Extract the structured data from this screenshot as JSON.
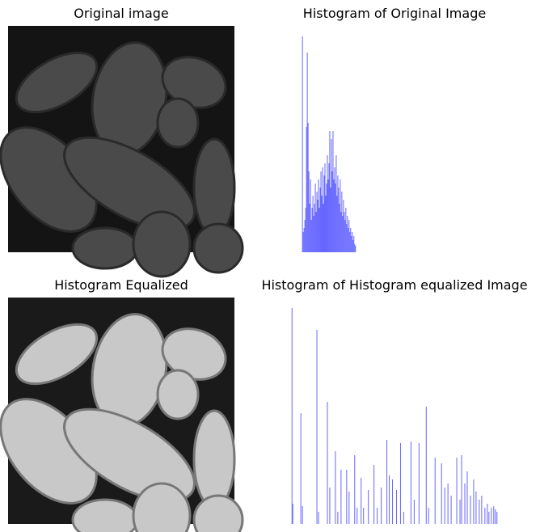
{
  "chart_data": [
    {
      "type": "image",
      "title": "Original image",
      "tone": "dark"
    },
    {
      "type": "histogram",
      "title": "Histogram of Original Image",
      "color": "#6666ff",
      "bins": [
        13,
        14,
        15,
        16,
        17,
        18,
        19,
        20,
        21,
        22,
        23,
        24,
        25,
        26,
        27,
        28,
        29,
        30,
        31,
        32,
        33,
        34,
        35,
        36,
        37,
        38,
        39,
        40,
        41,
        42,
        43,
        44,
        45,
        46,
        47,
        48,
        49,
        50,
        51,
        52,
        53,
        54,
        55,
        56,
        57,
        58,
        59,
        60,
        61,
        62,
        63,
        64,
        65,
        66,
        67,
        68,
        69,
        70,
        71,
        72,
        73,
        74,
        75,
        76,
        77,
        78,
        79,
        80
      ],
      "values": [
        267,
        25,
        30,
        40,
        55,
        155,
        247,
        160,
        100,
        60,
        90,
        40,
        55,
        70,
        45,
        60,
        85,
        50,
        75,
        65,
        90,
        55,
        80,
        100,
        70,
        105,
        60,
        95,
        110,
        70,
        85,
        120,
        90,
        110,
        150,
        80,
        140,
        100,
        150,
        90,
        105,
        85,
        120,
        70,
        95,
        80,
        60,
        90,
        50,
        75,
        45,
        65,
        50,
        40,
        55,
        35,
        45,
        30,
        40,
        25,
        30,
        20,
        25,
        15,
        20,
        10,
        8
      ],
      "xlim": [
        -12.8,
        268.8
      ],
      "ylim": [
        0,
        280
      ]
    },
    {
      "type": "image",
      "title": "Histogram Equalized",
      "tone": "bright"
    },
    {
      "type": "bar",
      "title": "Histogram of Histogram equalized Image",
      "color": "#6666ff",
      "bar_width": 1,
      "x": [
        0,
        1,
        11,
        13,
        31,
        33,
        44,
        47,
        54,
        57,
        61,
        68,
        71,
        78,
        81,
        86,
        89,
        95,
        102,
        106,
        111,
        118,
        121,
        125,
        130,
        135,
        139,
        148,
        152,
        158,
        167,
        170,
        178,
        186,
        190,
        194,
        198,
        205,
        209,
        211,
        215,
        218,
        222,
        226,
        229,
        233,
        236,
        240,
        243,
        245,
        248,
        251,
        253,
        255
      ],
      "values": [
        267,
        25,
        137,
        22,
        240,
        15,
        151,
        45,
        90,
        15,
        67,
        67,
        40,
        85,
        20,
        57,
        20,
        42,
        73,
        20,
        45,
        104,
        60,
        55,
        42,
        100,
        15,
        102,
        30,
        100,
        145,
        20,
        82,
        75,
        45,
        50,
        35,
        82,
        30,
        85,
        50,
        65,
        35,
        55,
        40,
        30,
        35,
        20,
        25,
        15,
        20,
        22,
        18,
        15
      ],
      "xlim": [
        -12.8,
        268.8
      ],
      "ylim": [
        0,
        280
      ]
    }
  ]
}
